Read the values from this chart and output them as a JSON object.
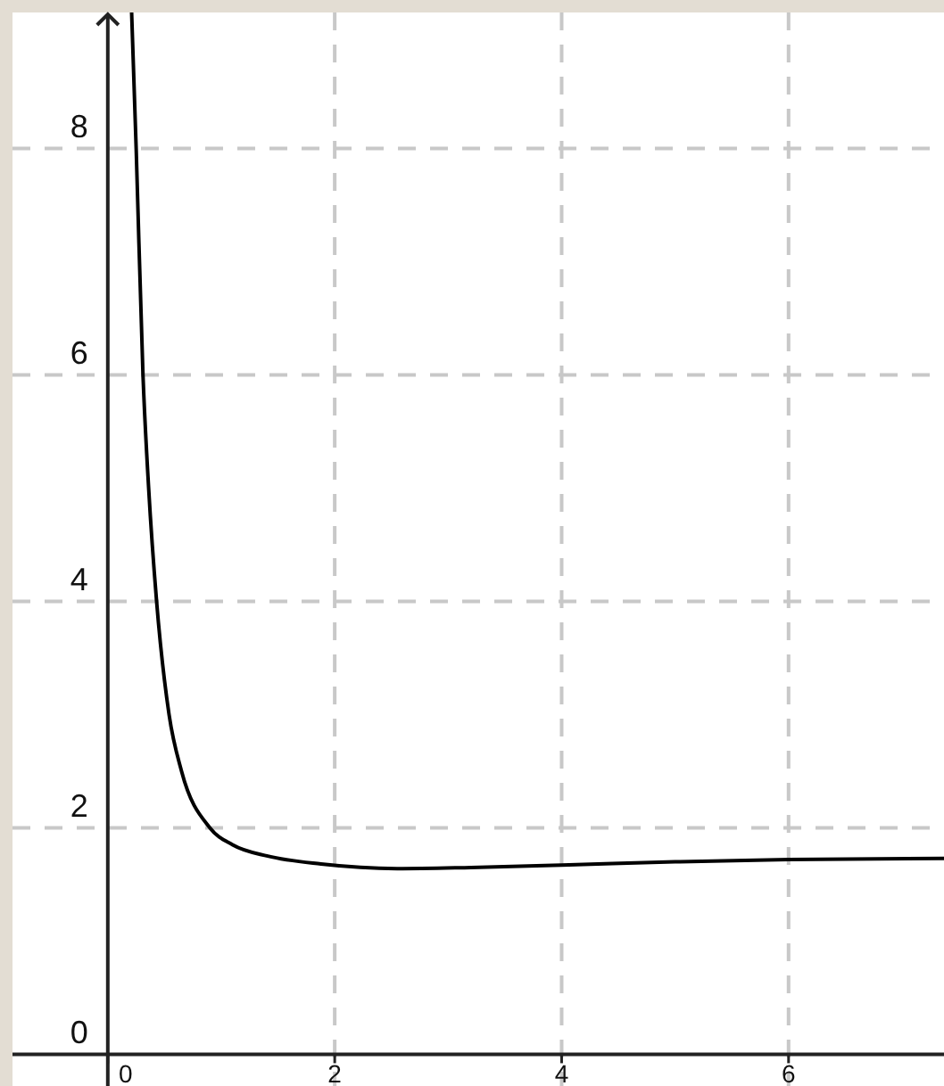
{
  "chart_data": {
    "type": "line",
    "xlim": [
      -0.84,
      7.37
    ],
    "ylim": [
      -0.28,
      9.2
    ],
    "xticks": [
      0,
      2,
      4,
      6
    ],
    "yticks": [
      0,
      2,
      4,
      6,
      8
    ],
    "grid": true,
    "marker": "none",
    "line_style": "solid",
    "series": [
      {
        "color": "#000000",
        "x": [
          0.21,
          0.25,
          0.31,
          0.36,
          0.43,
          0.54,
          0.65,
          0.9,
          1.1,
          1.41,
          1.88,
          2.55,
          3.2,
          4,
          5,
          6,
          7.37
        ],
        "values": [
          9.2,
          8,
          6,
          5,
          4,
          3,
          2.5,
          2,
          1.85,
          1.75,
          1.68,
          1.64,
          1.65,
          1.67,
          1.7,
          1.72,
          1.73
        ]
      }
    ]
  }
}
